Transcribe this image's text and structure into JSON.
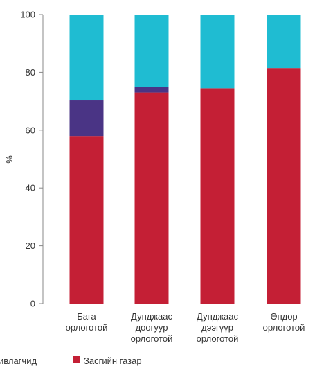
{
  "chart_data": {
    "type": "bar",
    "stacked": true,
    "ylabel": "%",
    "ylim": [
      0,
      100
    ],
    "yticks": [
      0,
      20,
      40,
      60,
      80,
      100
    ],
    "categories": [
      [
        "Бага",
        "орлоготой"
      ],
      [
        "Дунджаас",
        "доогуур",
        "орлоготой"
      ],
      [
        "Дунджаас",
        "дээгүүр",
        "орлоготой"
      ],
      [
        "Өндөр",
        "орлоготой"
      ]
    ],
    "series": [
      {
        "name": "Засгийн газар",
        "color": "#c41f35",
        "values": [
          58,
          73,
          74.5,
          81.5
        ]
      },
      {
        "name": "",
        "color": "#4a3485",
        "values": [
          12.5,
          2,
          0,
          0
        ]
      },
      {
        "name": "",
        "color": "#1fbcd2",
        "values": [
          29.5,
          25,
          25.5,
          18.5
        ]
      }
    ],
    "legend": {
      "placement": "bottom",
      "items": [
        {
          "label": "ивлагчид",
          "color": ""
        },
        {
          "label": "Засгийн газар",
          "color": "#c41f35"
        }
      ]
    }
  }
}
